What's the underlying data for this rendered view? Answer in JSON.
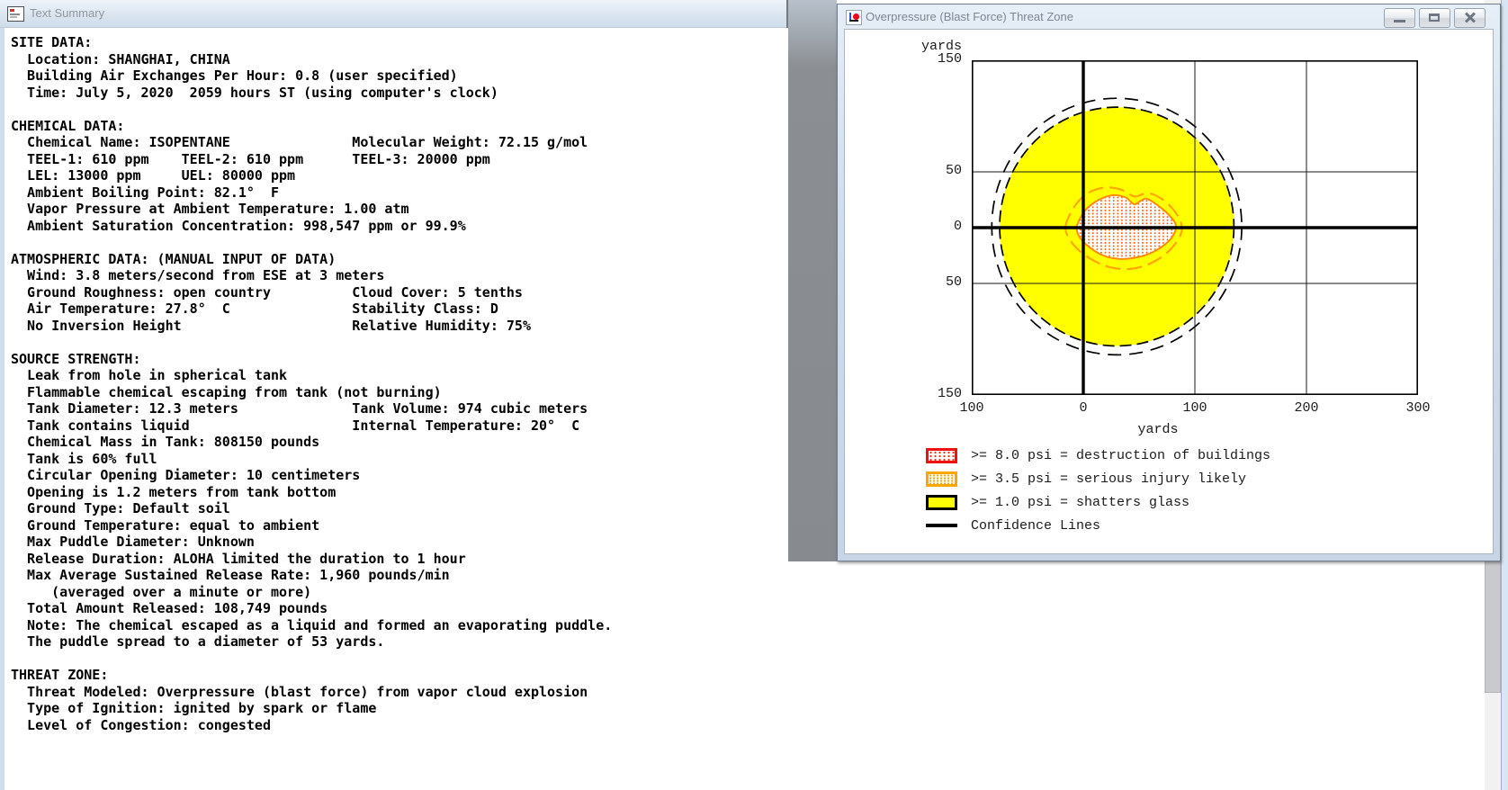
{
  "text_summary_window": {
    "title": "Text Summary",
    "lines": [
      "SITE DATA:",
      "  Location: SHANGHAI, CHINA",
      "  Building Air Exchanges Per Hour: 0.8 (user specified)",
      "  Time: July 5, 2020  2059 hours ST (using computer's clock)",
      "",
      "CHEMICAL DATA:",
      "  Chemical Name: ISOPENTANE               Molecular Weight: 72.15 g/mol",
      "  TEEL-1: 610 ppm    TEEL-2: 610 ppm      TEEL-3: 20000 ppm",
      "  LEL: 13000 ppm     UEL: 80000 ppm",
      "  Ambient Boiling Point: 82.1°  F",
      "  Vapor Pressure at Ambient Temperature: 1.00 atm",
      "  Ambient Saturation Concentration: 998,547 ppm or 99.9%",
      "",
      "ATMOSPHERIC DATA: (MANUAL INPUT OF DATA)",
      "  Wind: 3.8 meters/second from ESE at 3 meters",
      "  Ground Roughness: open country          Cloud Cover: 5 tenths",
      "  Air Temperature: 27.8°  C               Stability Class: D",
      "  No Inversion Height                     Relative Humidity: 75%",
      "",
      "SOURCE STRENGTH:",
      "  Leak from hole in spherical tank",
      "  Flammable chemical escaping from tank (not burning)",
      "  Tank Diameter: 12.3 meters              Tank Volume: 974 cubic meters",
      "  Tank contains liquid                    Internal Temperature: 20°  C",
      "  Chemical Mass in Tank: 808150 pounds",
      "  Tank is 60% full",
      "  Circular Opening Diameter: 10 centimeters",
      "  Opening is 1.2 meters from tank bottom",
      "  Ground Type: Default soil",
      "  Ground Temperature: equal to ambient",
      "  Max Puddle Diameter: Unknown",
      "  Release Duration: ALOHA limited the duration to 1 hour",
      "  Max Average Sustained Release Rate: 1,960 pounds/min",
      "     (averaged over a minute or more)",
      "  Total Amount Released: 108,749 pounds",
      "  Note: The chemical escaped as a liquid and formed an evaporating puddle.",
      "  The puddle spread to a diameter of 53 yards.",
      "",
      "THREAT ZONE:",
      "  Threat Modeled: Overpressure (blast force) from vapor cloud explosion",
      "  Type of Ignition: ignited by spark or flame",
      "  Level of Congestion: congested"
    ]
  },
  "threat_window": {
    "title": "Overpressure (Blast Force) Threat Zone",
    "window_controls": [
      "minimize",
      "maximize",
      "close"
    ]
  },
  "chart_data": {
    "type": "area",
    "title": "Overpressure (Blast Force) Threat Zone",
    "x_axis": {
      "label": "yards",
      "range": [
        -100,
        300
      ],
      "tick_values": [
        -100,
        0,
        100,
        200,
        300
      ],
      "tick_labels": [
        "100",
        "0",
        "100",
        "200",
        "300"
      ],
      "minor_gridlines": [
        100,
        200
      ],
      "axis_line_at": 0
    },
    "y_axis": {
      "label": "yards",
      "range": [
        -150,
        150
      ],
      "tick_values": [
        150,
        50,
        0,
        -50,
        -150
      ],
      "tick_labels": [
        "150",
        "50",
        "0",
        "50",
        "150"
      ],
      "minor_gridlines": [
        50,
        -50
      ],
      "axis_line_at": 0
    },
    "grid": true,
    "zones": [
      {
        "id": "psi8",
        "threshold_psi": 8.0,
        "effect": "destruction of buildings",
        "shape": "polygon",
        "outline_color": "#ff8c00",
        "fill": "dotted",
        "points_yards": [
          [
            -6,
            0
          ],
          [
            -2,
            10
          ],
          [
            4,
            18
          ],
          [
            14,
            25
          ],
          [
            26,
            29
          ],
          [
            38,
            27
          ],
          [
            46,
            21
          ],
          [
            56,
            26
          ],
          [
            68,
            19
          ],
          [
            78,
            10
          ],
          [
            83,
            2
          ],
          [
            80,
            -8
          ],
          [
            72,
            -16
          ],
          [
            60,
            -23
          ],
          [
            46,
            -27
          ],
          [
            32,
            -28
          ],
          [
            18,
            -25
          ],
          [
            6,
            -18
          ],
          [
            -3,
            -9
          ]
        ]
      },
      {
        "id": "psi35",
        "threshold_psi": 3.5,
        "effect": "serious injury likely",
        "shape": "contour",
        "outline_color": "#ffa500",
        "fill": "none",
        "points_yards": [
          [
            -16,
            0
          ],
          [
            -12,
            12
          ],
          [
            -4,
            24
          ],
          [
            6,
            32
          ],
          [
            20,
            36
          ],
          [
            34,
            34
          ],
          [
            46,
            28
          ],
          [
            58,
            31
          ],
          [
            70,
            26
          ],
          [
            80,
            17
          ],
          [
            87,
            6
          ],
          [
            88,
            -4
          ],
          [
            82,
            -15
          ],
          [
            72,
            -25
          ],
          [
            58,
            -33
          ],
          [
            42,
            -37
          ],
          [
            26,
            -36
          ],
          [
            12,
            -31
          ],
          [
            -2,
            -22
          ],
          [
            -12,
            -11
          ]
        ]
      },
      {
        "id": "psi1",
        "threshold_psi": 1.0,
        "effect": "shatters glass",
        "shape": "ellipse",
        "outline_color": "#000000",
        "fill": "#ffff00",
        "center_yards": [
          30,
          1
        ],
        "radii_yards": [
          105,
          107
        ]
      }
    ],
    "confidence_ellipses": [
      {
        "center_yards": [
          30,
          1
        ],
        "radii_yards": [
          112,
          115
        ]
      }
    ],
    "legend": [
      {
        "swatch": "dots-red",
        "label": ">= 8.0 psi = destruction of buildings"
      },
      {
        "swatch": "dots-orange",
        "label": ">= 3.5 psi = serious injury likely"
      },
      {
        "swatch": "yellow",
        "label": ">= 1.0 psi = shatters glass"
      },
      {
        "swatch": "line",
        "label": "Confidence Lines"
      }
    ]
  }
}
